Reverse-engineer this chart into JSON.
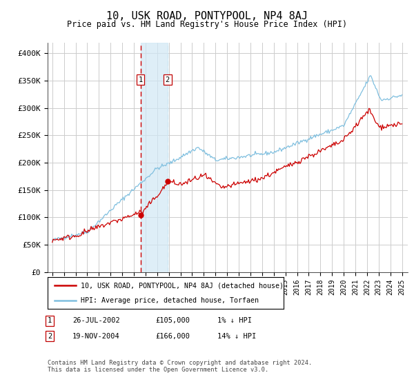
{
  "title": "10, USK ROAD, PONTYPOOL, NP4 8AJ",
  "subtitle": "Price paid vs. HM Land Registry's House Price Index (HPI)",
  "legend_line1": "10, USK ROAD, PONTYPOOL, NP4 8AJ (detached house)",
  "legend_line2": "HPI: Average price, detached house, Torfaen",
  "transaction1_date": "26-JUL-2002",
  "transaction1_price": "£105,000",
  "transaction1_hpi": "1% ↓ HPI",
  "transaction2_date": "19-NOV-2004",
  "transaction2_price": "£166,000",
  "transaction2_hpi": "14% ↓ HPI",
  "footer": "Contains HM Land Registry data © Crown copyright and database right 2024.\nThis data is licensed under the Open Government Licence v3.0.",
  "ylim": [
    0,
    420000
  ],
  "yticks": [
    0,
    50000,
    100000,
    150000,
    200000,
    250000,
    300000,
    350000,
    400000
  ],
  "ytick_labels": [
    "£0",
    "£50K",
    "£100K",
    "£150K",
    "£200K",
    "£250K",
    "£300K",
    "£350K",
    "£400K"
  ],
  "hpi_color": "#7fbfdf",
  "price_color": "#cc0000",
  "marker_color": "#cc0000",
  "vline1_color": "#cc0000",
  "shade_color": "#d0e8f5",
  "transaction1_x": 2002.57,
  "transaction2_x": 2004.89,
  "background_color": "#ffffff",
  "grid_color": "#cccccc",
  "seed": 42
}
